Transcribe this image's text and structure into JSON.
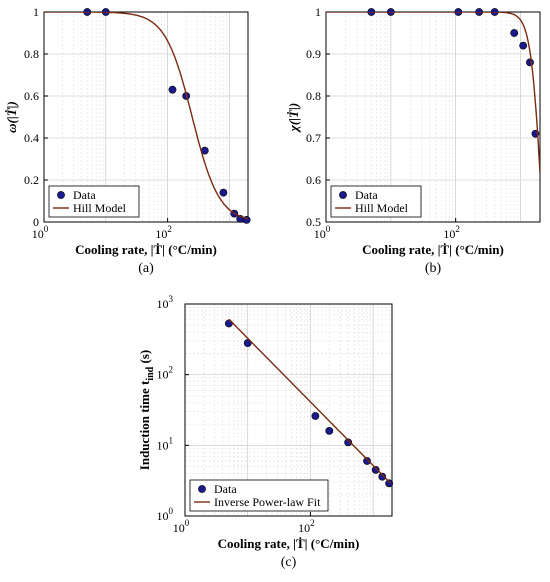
{
  "chart_data": [
    {
      "id": "a",
      "type": "scatter",
      "caption": "(a)",
      "xlabel": "Cooling rate, |Ṫ| (°C/min)",
      "ylabel": "ω(|Ṫ|)",
      "xscale": "log",
      "xlim": [
        1,
        2000
      ],
      "ylim": [
        0,
        1
      ],
      "xticks": [
        {
          "v": 1,
          "label": "10",
          "exp": "0"
        },
        {
          "v": 100,
          "label": "10",
          "exp": "2"
        }
      ],
      "yticks": [
        {
          "v": 0,
          "label": "0"
        },
        {
          "v": 0.2,
          "label": "0.2"
        },
        {
          "v": 0.4,
          "label": "0.4"
        },
        {
          "v": 0.6,
          "label": "0.6"
        },
        {
          "v": 0.8,
          "label": "0.8"
        },
        {
          "v": 1,
          "label": "1"
        }
      ],
      "grid": true,
      "legend": {
        "placement": "bottom-left",
        "entries": [
          "Data",
          "Hill Model"
        ]
      },
      "series": [
        {
          "name": "Data",
          "style": "markers",
          "color": "#1a1a8c",
          "x": [
            5,
            10,
            120,
            200,
            400,
            800,
            1200,
            1500,
            1900
          ],
          "y": [
            1.0,
            1.0,
            0.63,
            0.6,
            0.34,
            0.14,
            0.04,
            0.015,
            0.01
          ]
        },
        {
          "name": "Hill Model",
          "style": "line",
          "color": "#7a2a10",
          "model": {
            "kind": "hill_decreasing",
            "top": 1.0,
            "half": 250,
            "n": 2
          }
        }
      ]
    },
    {
      "id": "b",
      "type": "scatter",
      "caption": "(b)",
      "xlabel": "Cooling rate, |Ṫ| (°C/min)",
      "ylabel": "χ(|Ṫ|)",
      "xscale": "log",
      "xlim": [
        1,
        2000
      ],
      "ylim": [
        0.5,
        1
      ],
      "xticks": [
        {
          "v": 1,
          "label": "10",
          "exp": "0"
        },
        {
          "v": 100,
          "label": "10",
          "exp": "2"
        }
      ],
      "yticks": [
        {
          "v": 0.5,
          "label": "0.5"
        },
        {
          "v": 0.6,
          "label": "0.6"
        },
        {
          "v": 0.7,
          "label": "0.7"
        },
        {
          "v": 0.8,
          "label": "0.8"
        },
        {
          "v": 0.9,
          "label": "0.9"
        },
        {
          "v": 1,
          "label": "1"
        }
      ],
      "grid": true,
      "legend": {
        "placement": "bottom-left",
        "entries": [
          "Data",
          "Hill Model"
        ]
      },
      "series": [
        {
          "name": "Data",
          "style": "markers",
          "color": "#1a1a8c",
          "x": [
            5,
            10,
            110,
            230,
            400,
            800,
            1100,
            1400,
            1700
          ],
          "y": [
            1.0,
            1.0,
            1.0,
            1.0,
            1.0,
            0.95,
            0.92,
            0.88,
            0.71
          ]
        },
        {
          "name": "Hill Model",
          "style": "line",
          "color": "#7a2a10",
          "model": {
            "kind": "hill_decreasing_offset",
            "top": 1.0,
            "half": 2200,
            "n": 5,
            "floor": 0.0
          }
        }
      ]
    },
    {
      "id": "c",
      "type": "scatter",
      "caption": "(c)",
      "xlabel": "Cooling rate, |Ṫ| (°C/min)",
      "ylabel": "Induction time t",
      "ylabel_sub": "ind",
      "ylabel_unit": "(s)",
      "xscale": "log",
      "yscale": "log",
      "xlim": [
        1,
        2000
      ],
      "ylim": [
        1,
        1000
      ],
      "xticks": [
        {
          "v": 1,
          "label": "10",
          "exp": "0"
        },
        {
          "v": 100,
          "label": "10",
          "exp": "2"
        }
      ],
      "yticks": [
        {
          "v": 1,
          "label": "10",
          "exp": "0"
        },
        {
          "v": 10,
          "label": "10",
          "exp": "1"
        },
        {
          "v": 100,
          "label": "10",
          "exp": "2"
        },
        {
          "v": 1000,
          "label": "10",
          "exp": "3"
        }
      ],
      "grid": true,
      "legend": {
        "placement": "bottom-left",
        "entries": [
          "Data",
          "Inverse Power-law Fit"
        ]
      },
      "series": [
        {
          "name": "Data",
          "style": "markers",
          "color": "#1a1a8c",
          "x": [
            5,
            10,
            120,
            200,
            400,
            800,
            1100,
            1400,
            1800
          ],
          "y": [
            530,
            280,
            26,
            16,
            11,
            6,
            4.5,
            3.6,
            2.9
          ]
        },
        {
          "name": "Inverse Power-law Fit",
          "style": "line",
          "color": "#7a2a10",
          "model": {
            "kind": "power",
            "a": 2600,
            "b": -0.9,
            "x0": 5,
            "x1": 1900
          }
        }
      ]
    }
  ]
}
